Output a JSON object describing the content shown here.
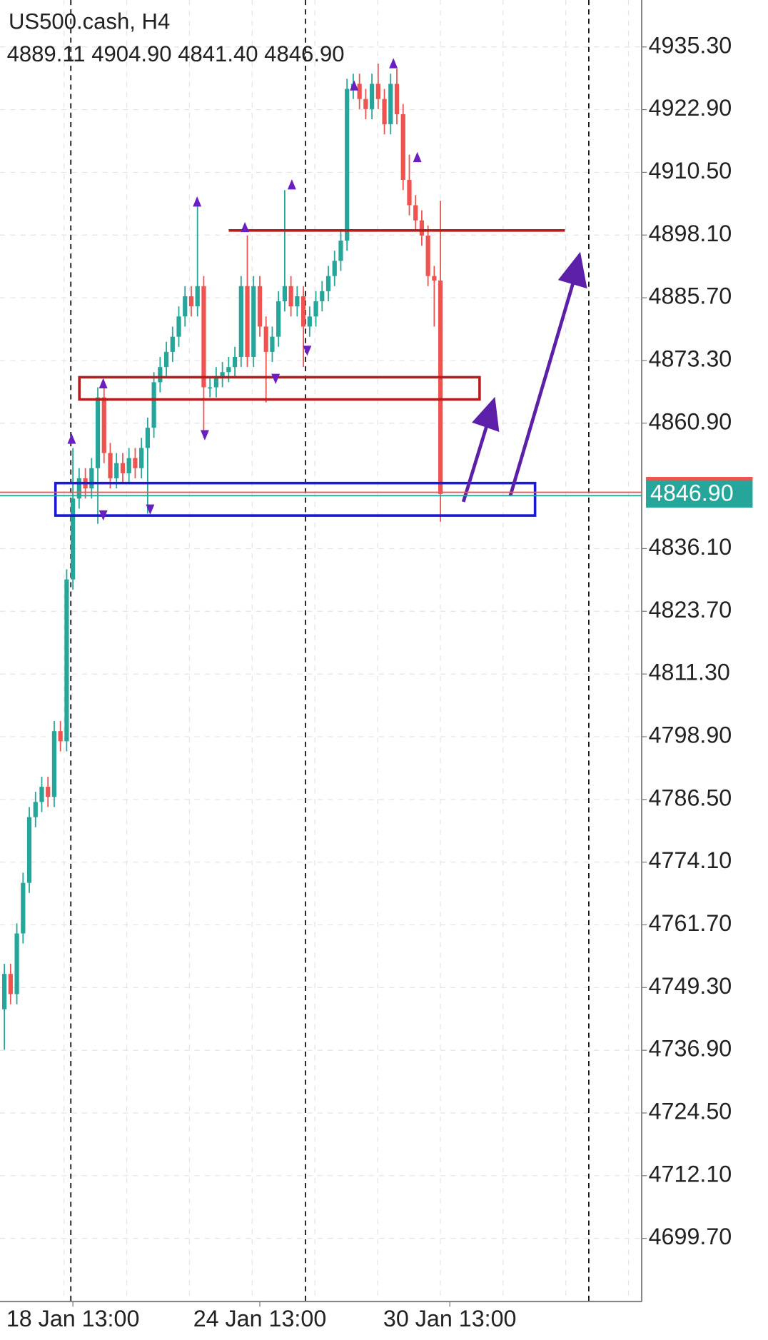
{
  "chart_data": {
    "type": "candlestick",
    "title": "US500.cash, H4",
    "ohlc_label": "4889.11 4904.90 4841.40 4846.90",
    "up_color": "#26a69a",
    "down_color": "#ef5350",
    "open": [
      4745,
      4752,
      4748,
      4760,
      4770,
      4783,
      4786,
      4789,
      4787,
      4800,
      4798,
      4830,
      4846,
      4850,
      4848,
      4852,
      4866,
      4855,
      4850,
      4853,
      4851,
      4854,
      4852,
      4856,
      4860,
      4869,
      4872,
      4875,
      4878,
      4882,
      4886,
      4884,
      4888,
      4868,
      4868,
      4870,
      4871,
      4872,
      4874,
      4888,
      4874,
      4888,
      4880,
      4875,
      4878,
      4885,
      4888,
      4884,
      4886,
      4880,
      4882,
      4885,
      4887,
      4890,
      4893,
      4897,
      4927,
      4928,
      4925,
      4923,
      4928,
      4925,
      4920,
      4928,
      4922,
      4909,
      4904,
      4901,
      4898,
      4890,
      4889.11
    ],
    "high": [
      4754,
      4754,
      4762,
      4772,
      4785,
      4788,
      4791,
      4791,
      4802,
      4802,
      4832,
      4856,
      4852,
      4852,
      4854,
      4868,
      4868,
      4857,
      4855,
      4855,
      4856,
      4856,
      4858,
      4862,
      4871,
      4874,
      4877,
      4880,
      4884,
      4888,
      4888,
      4904,
      4890,
      4870,
      4872,
      4873,
      4874,
      4876,
      4890,
      4898,
      4890,
      4890,
      4882,
      4880,
      4887,
      4907,
      4890,
      4888,
      4888,
      4884,
      4887,
      4889,
      4892,
      4895,
      4899,
      4929,
      4930,
      4930,
      4927,
      4930,
      4932,
      4927,
      4930,
      4931,
      4924,
      4914,
      4906,
      4903,
      4900,
      4892,
      4904.9
    ],
    "low": [
      4737,
      4746,
      4746,
      4758,
      4768,
      4781,
      4784,
      4785,
      4785,
      4796,
      4796,
      4828,
      4844,
      4846,
      4846,
      4841,
      4853,
      4848,
      4848,
      4849,
      4849,
      4850,
      4850,
      4843,
      4858,
      4867,
      4870,
      4873,
      4876,
      4880,
      4882,
      4882,
      4858,
      4866,
      4866,
      4868,
      4869,
      4870,
      4872,
      4872,
      4872,
      4878,
      4865,
      4873,
      4876,
      4883,
      4882,
      4882,
      4872,
      4878,
      4880,
      4883,
      4885,
      4888,
      4891,
      4895,
      4925,
      4923,
      4921,
      4921,
      4923,
      4918,
      4918,
      4920,
      4907,
      4902,
      4899,
      4896,
      4888,
      4880,
      4841.4
    ],
    "close": [
      4752,
      4748,
      4760,
      4770,
      4783,
      4786,
      4789,
      4787,
      4800,
      4798,
      4830,
      4846,
      4850,
      4848,
      4852,
      4866,
      4855,
      4850,
      4853,
      4851,
      4854,
      4852,
      4856,
      4860,
      4869,
      4872,
      4875,
      4878,
      4882,
      4886,
      4884,
      4888,
      4868,
      4868,
      4870,
      4871,
      4872,
      4874,
      4888,
      4874,
      4888,
      4880,
      4875,
      4878,
      4885,
      4888,
      4884,
      4886,
      4880,
      4882,
      4885,
      4887,
      4890,
      4893,
      4897,
      4927,
      4928,
      4925,
      4923,
      4928,
      4925,
      4920,
      4928,
      4922,
      4909,
      4904,
      4901,
      4898,
      4890,
      4889.11,
      4846.9
    ],
    "xlim": [
      -0.7,
      102.3
    ],
    "xticks": [
      {
        "value": 11,
        "label": "18 Jan 13:00"
      },
      {
        "value": 41,
        "label": "24 Jan 13:00"
      },
      {
        "value": 71.5,
        "label": "30 Jan 13:00"
      }
    ],
    "ylim": [
      4687.2,
      4944.58
    ],
    "yticks": [
      {
        "value": 4935.3,
        "label": "4935.30"
      },
      {
        "value": 4922.9,
        "label": "4922.90"
      },
      {
        "value": 4910.5,
        "label": "4910.50"
      },
      {
        "value": 4898.1,
        "label": "4898.10"
      },
      {
        "value": 4885.7,
        "label": "4885.70"
      },
      {
        "value": 4873.3,
        "label": "4873.30"
      },
      {
        "value": 4860.9,
        "label": "4860.90"
      },
      {
        "value": 4836.1,
        "label": "4836.10"
      },
      {
        "value": 4823.7,
        "label": "4823.70"
      },
      {
        "value": 4811.3,
        "label": "4811.30"
      },
      {
        "value": 4798.9,
        "label": "4798.90"
      },
      {
        "value": 4786.5,
        "label": "4786.50"
      },
      {
        "value": 4774.1,
        "label": "4774.10"
      },
      {
        "value": 4761.7,
        "label": "4761.70"
      },
      {
        "value": 4749.3,
        "label": "4749.30"
      },
      {
        "value": 4736.9,
        "label": "4736.90"
      },
      {
        "value": 4724.5,
        "label": "4724.50"
      },
      {
        "value": 4712.1,
        "label": "4712.10"
      },
      {
        "value": 4699.7,
        "label": "4699.70"
      }
    ],
    "grid": true,
    "current_price": {
      "value": 4846.9,
      "label": "4846.90"
    }
  }
}
